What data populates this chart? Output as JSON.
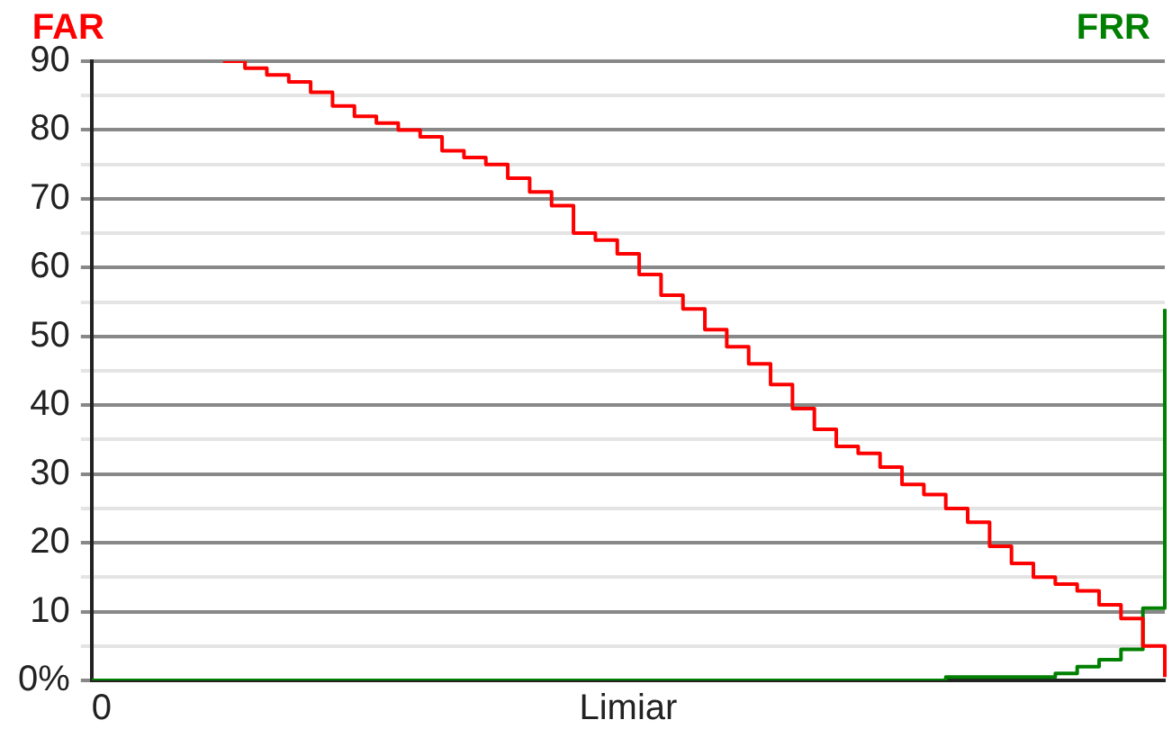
{
  "chart_data": {
    "type": "step",
    "xlabel": "Limiar",
    "categories": [
      "0",
      null,
      null,
      null,
      null,
      null,
      null,
      null,
      null,
      null,
      null,
      null,
      null,
      null,
      null,
      null,
      null,
      null,
      null,
      null,
      null,
      null,
      null,
      null,
      null,
      null,
      null,
      null,
      null,
      null,
      null,
      null,
      null,
      null,
      null,
      null,
      null,
      null,
      null,
      null,
      null,
      null,
      null,
      null,
      null,
      null,
      null,
      null,
      null,
      null
    ],
    "series": [
      {
        "name": "FAR",
        "color": "#ff0000",
        "values": [
          null,
          null,
          null,
          null,
          null,
          null,
          90,
          89,
          88,
          87,
          85.5,
          83.5,
          82,
          81,
          80,
          79,
          77,
          76,
          75,
          73,
          71,
          69,
          65,
          64,
          62,
          59,
          56,
          54,
          51,
          48.5,
          46,
          43,
          39.5,
          36.5,
          34,
          33,
          31,
          28.5,
          27,
          25,
          23,
          19.5,
          17,
          15,
          14,
          13,
          11,
          9,
          5,
          0.5
        ]
      },
      {
        "name": "FRR",
        "color": "#008000",
        "values": [
          0,
          0,
          0,
          0,
          0,
          0,
          0,
          0,
          0,
          0,
          0,
          0,
          0,
          0,
          0,
          0,
          0,
          0,
          0,
          0,
          0,
          0,
          0,
          0,
          0,
          0,
          0,
          0,
          0,
          0,
          0,
          0,
          0,
          0,
          0,
          0,
          0,
          0,
          0,
          0.5,
          0.5,
          0.5,
          0.5,
          0.5,
          1,
          2,
          3,
          4.5,
          10.5,
          54
        ]
      }
    ],
    "ylim": [
      0,
      90
    ],
    "yticks": [
      {
        "value": 0,
        "label": "0%"
      },
      {
        "value": 5,
        "label": null
      },
      10,
      {
        "value": 15,
        "label": null
      },
      20,
      {
        "value": 25,
        "label": null
      },
      30,
      {
        "value": 35,
        "label": null
      },
      40,
      {
        "value": 45,
        "label": null
      },
      50,
      {
        "value": 55,
        "label": null
      },
      60,
      {
        "value": 65,
        "label": null
      },
      70,
      {
        "value": 75,
        "label": null
      },
      80,
      {
        "value": 85,
        "label": null
      },
      90
    ],
    "grid": "y",
    "legend": false,
    "marker": "none",
    "line_style": "solid"
  }
}
